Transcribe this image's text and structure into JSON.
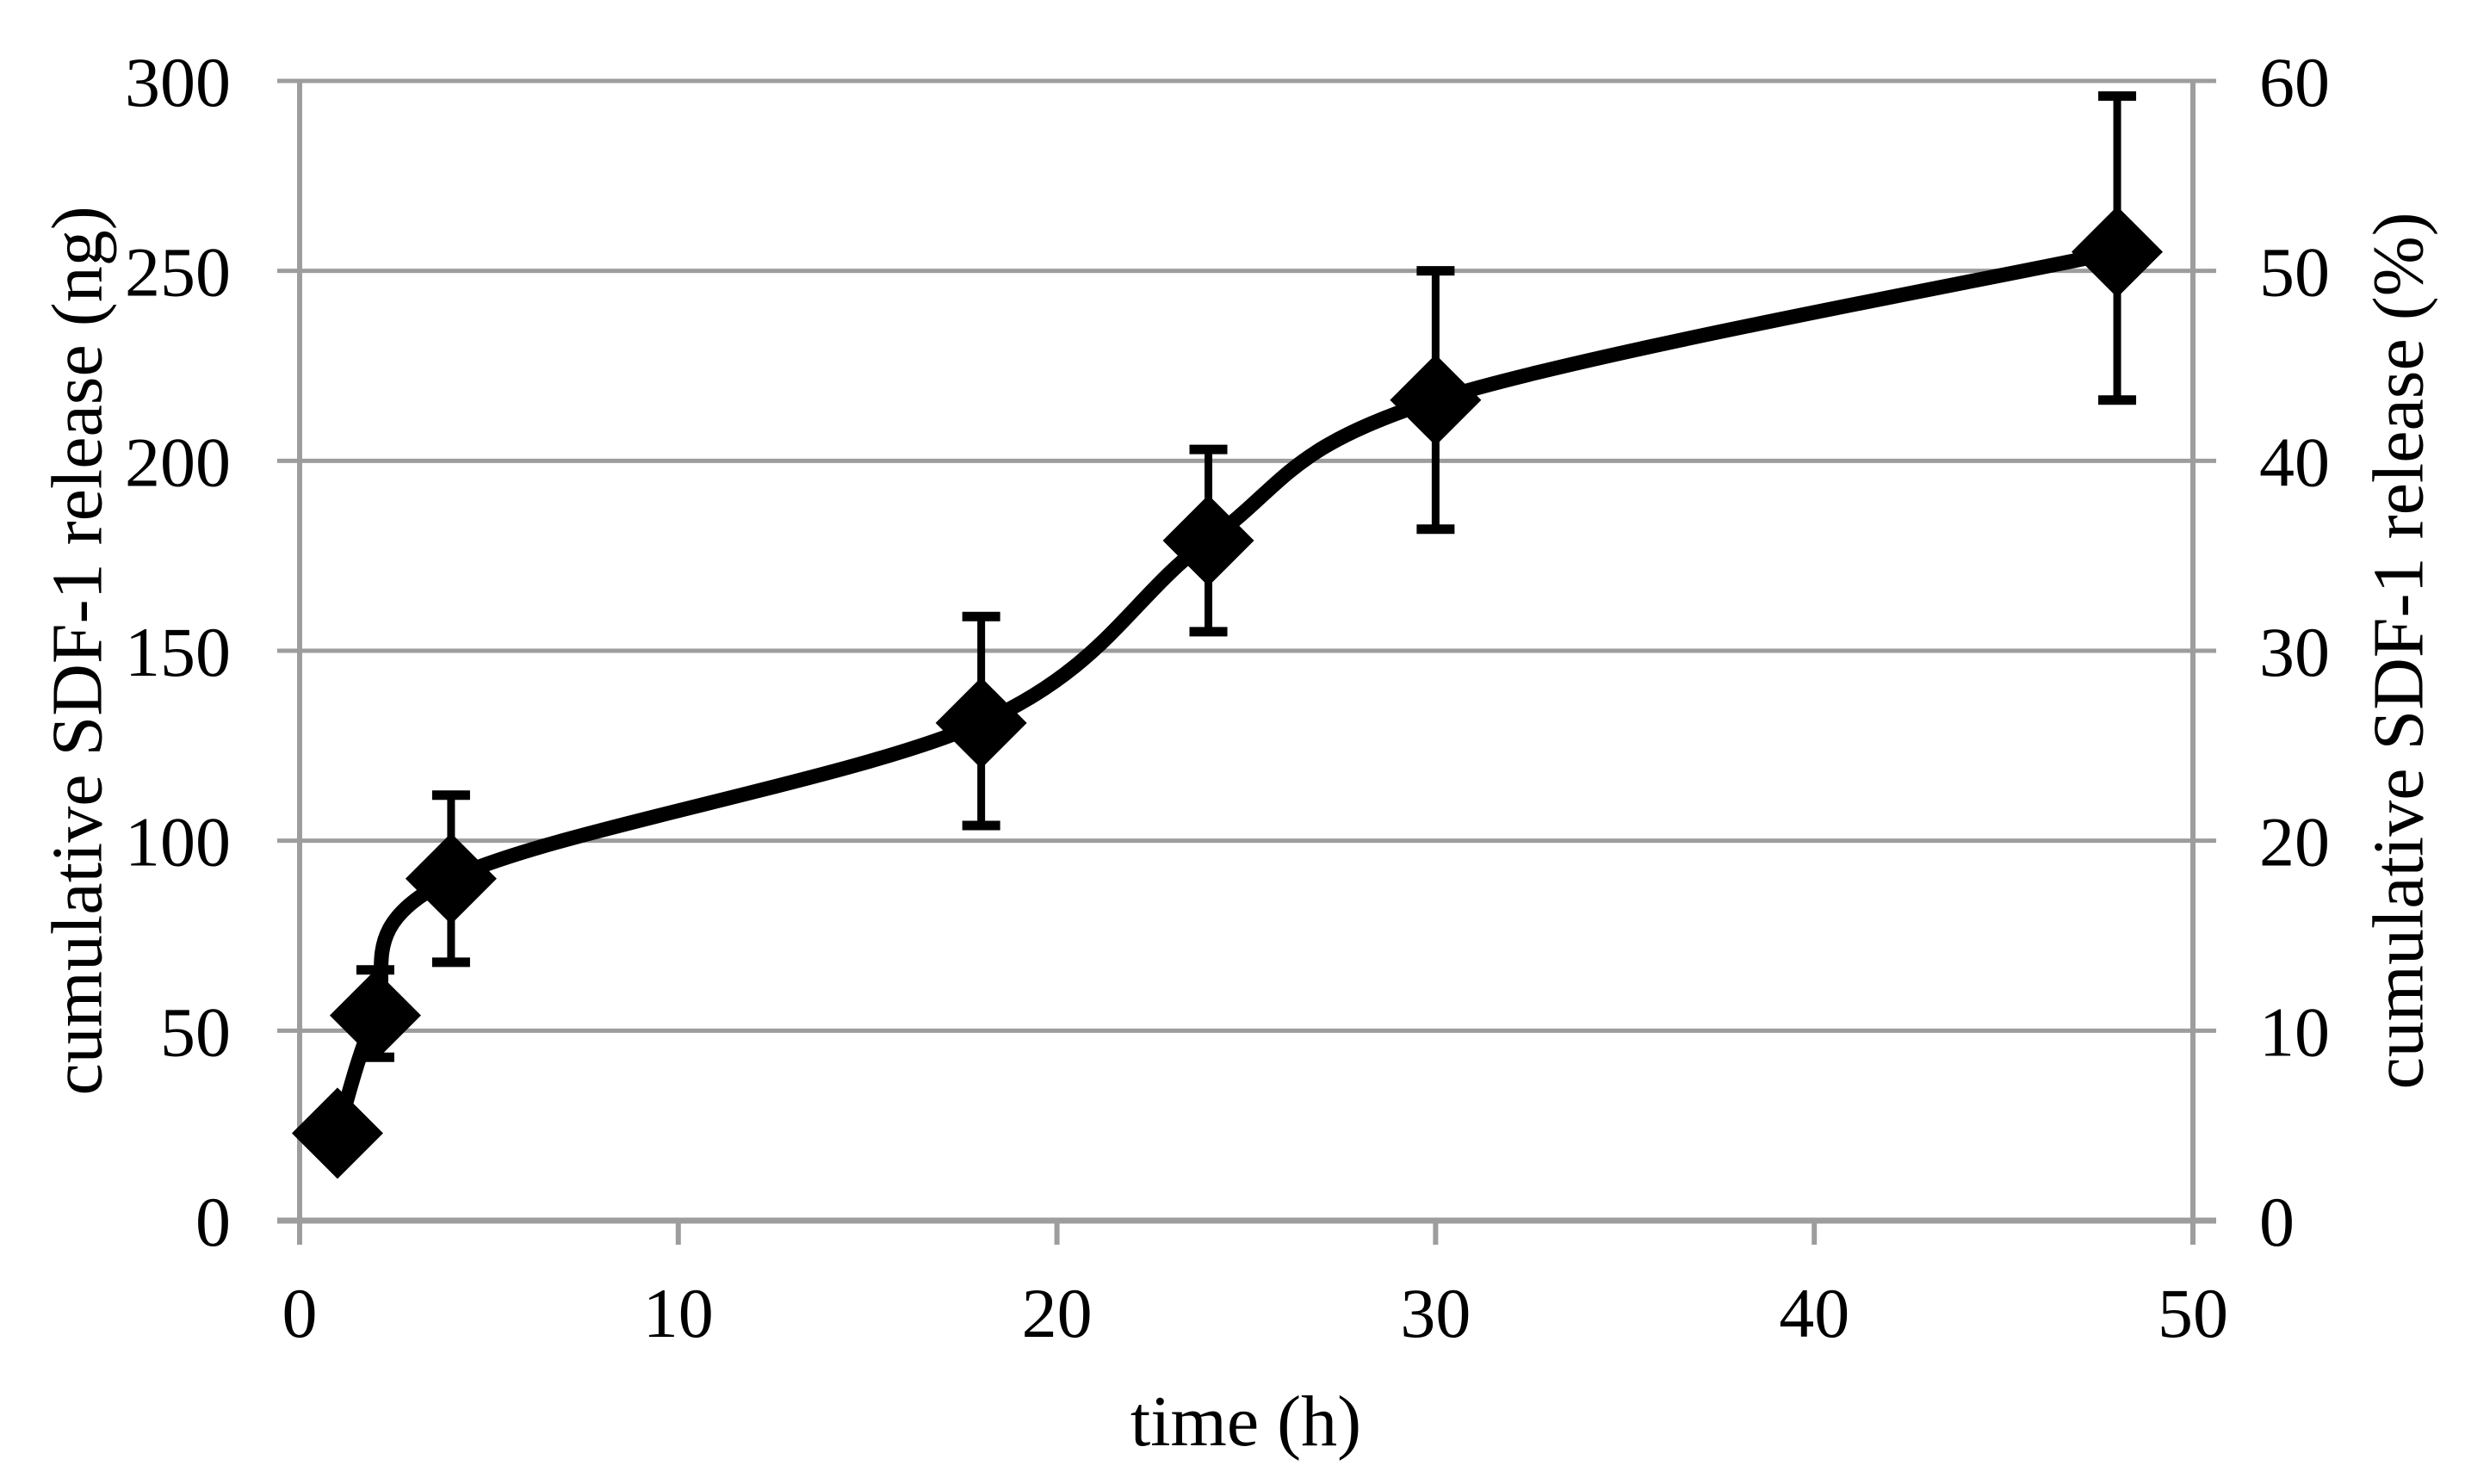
{
  "figure": {
    "background": "#FFFFFF",
    "description": "scatter-line chart with error bars and dual y-axes"
  },
  "chart_data": {
    "type": "line",
    "title": "",
    "xlabel": "time (h)",
    "ylabel_left": "cumulative SDF-1 release (ng)",
    "ylabel_right": "cumulative SDF-1 release (%)",
    "x": [
      1,
      2,
      4,
      18,
      24,
      30,
      48
    ],
    "series": [
      {
        "name": "cumulative SDF-1 release",
        "values_ng": [
          23,
          54,
          90,
          131,
          179,
          216,
          255
        ],
        "err_up_ng": [
          0,
          12,
          22,
          28,
          24,
          34,
          41
        ],
        "err_down_ng": [
          0,
          11,
          22,
          27,
          24,
          34,
          39
        ],
        "values_pct": [
          4.6,
          10.8,
          18.0,
          26.2,
          35.8,
          43.2,
          51.0
        ],
        "marker": "diamond",
        "smooth": true,
        "color": "#000000"
      }
    ],
    "xlim": [
      0,
      50
    ],
    "ylim_left": [
      0,
      300
    ],
    "ylim_right": [
      0,
      60
    ],
    "x_ticks": [
      0,
      10,
      20,
      30,
      40,
      50
    ],
    "y_ticks_left": [
      0,
      50,
      100,
      150,
      200,
      250,
      300
    ],
    "y_ticks_right": [
      0,
      10,
      20,
      30,
      40,
      50,
      60
    ],
    "grid": "horizontal",
    "legend": false,
    "colors": {
      "grid": "#9D9D9D",
      "axis": "#9D9D9D",
      "series": "#000000",
      "text": "#000000"
    }
  }
}
